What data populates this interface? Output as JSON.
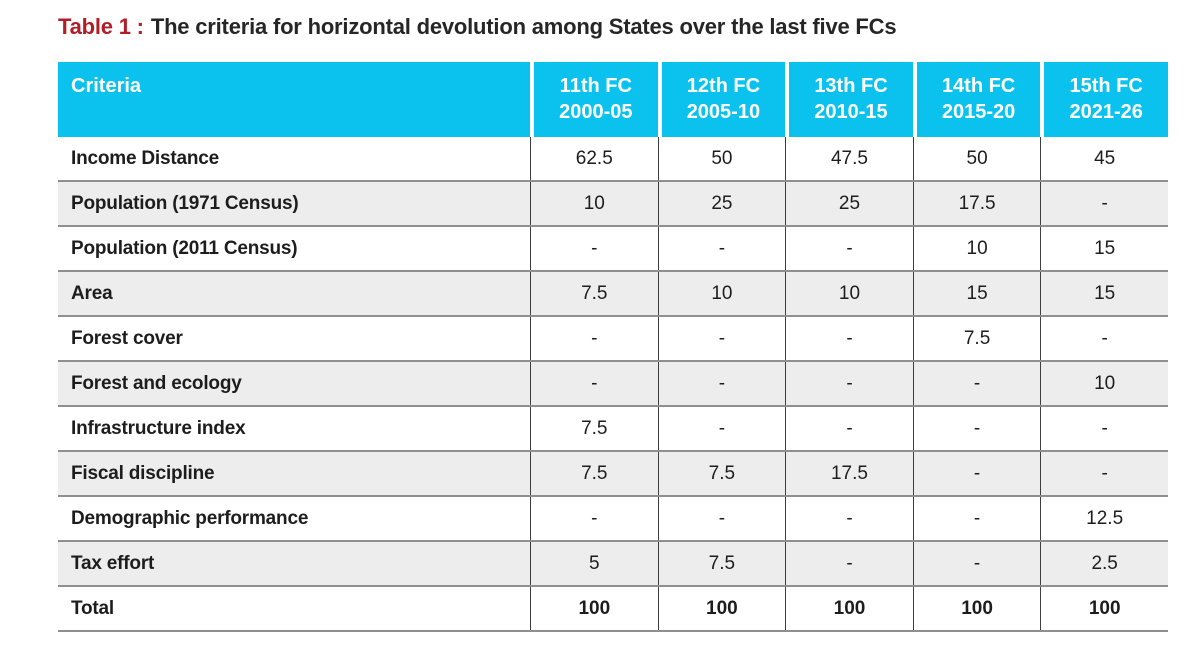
{
  "title": {
    "accent": "Table 1 :",
    "text": "The criteria for horizontal devolution among States over the last five FCs"
  },
  "colors": {
    "header_bg": "#0bc2ee",
    "accent_red": "#b11e28",
    "stripe": "#ededed",
    "grid_h": "#8f8f8f",
    "grid_v": "#3e3e3e"
  },
  "table": {
    "header": {
      "criteria": "Criteria",
      "columns": [
        {
          "fc": "11th FC",
          "period": "2000-05"
        },
        {
          "fc": "12th FC",
          "period": "2005-10"
        },
        {
          "fc": "13th FC",
          "period": "2010-15"
        },
        {
          "fc": "14th FC",
          "period": "2015-20"
        },
        {
          "fc": "15th FC",
          "period": "2021-26"
        }
      ]
    },
    "rows": [
      {
        "label": "Income Distance",
        "values": [
          "62.5",
          "50",
          "47.5",
          "50",
          "45"
        ]
      },
      {
        "label": "Population (1971 Census)",
        "values": [
          "10",
          "25",
          "25",
          "17.5",
          "-"
        ]
      },
      {
        "label": "Population (2011 Census)",
        "values": [
          "-",
          "-",
          "-",
          "10",
          "15"
        ]
      },
      {
        "label": "Area",
        "values": [
          "7.5",
          "10",
          "10",
          "15",
          "15"
        ]
      },
      {
        "label": "Forest cover",
        "values": [
          "-",
          "-",
          "-",
          "7.5",
          "-"
        ]
      },
      {
        "label": "Forest and ecology",
        "values": [
          "-",
          "-",
          "-",
          "-",
          "10"
        ]
      },
      {
        "label": "Infrastructure index",
        "values": [
          "7.5",
          "-",
          "-",
          "-",
          "-"
        ]
      },
      {
        "label": "Fiscal discipline",
        "values": [
          "7.5",
          "7.5",
          "17.5",
          "-",
          "-"
        ]
      },
      {
        "label": "Demographic performance",
        "values": [
          "-",
          "-",
          "-",
          "-",
          "12.5"
        ]
      },
      {
        "label": "Tax effort",
        "values": [
          "5",
          "7.5",
          "-",
          "-",
          "2.5"
        ]
      },
      {
        "label": "Total",
        "values": [
          "100",
          "100",
          "100",
          "100",
          "100"
        ],
        "bold": true
      }
    ]
  }
}
